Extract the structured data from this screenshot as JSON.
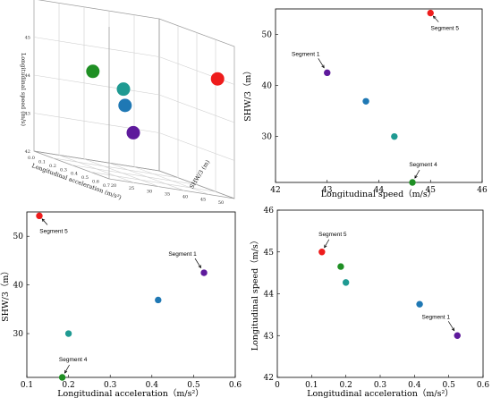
{
  "colors": {
    "segment5": "#ee1c1c",
    "segment1": "#5e1a9c",
    "green": "#1f8f24",
    "teal": "#1f9a92",
    "blue": "#1f78b4"
  },
  "chart_data": [
    {
      "type": "scatter",
      "panel": "3d-top-left",
      "xlabel": "Longitudinal acceleration (m/s²)",
      "ylabel": "SHW/3 (m)",
      "zlabel": "Longitudinal speed (m/s)",
      "x_ticks": [
        "0.7",
        "0.6",
        "0.5",
        "0.4",
        "0.3",
        "0.2",
        "0.1",
        "0.0"
      ],
      "y_ticks": [
        "20",
        "25",
        "30",
        "35",
        "40",
        "45",
        "50"
      ],
      "z_ticks": [
        "45",
        "44",
        "43",
        "42"
      ],
      "points": [
        {
          "acc": 0.13,
          "shw": 54.2,
          "speed": 45.0,
          "color": "#ee1c1c"
        },
        {
          "acc": 0.185,
          "shw": 21.0,
          "speed": 44.65,
          "color": "#1f8f24"
        },
        {
          "acc": 0.2,
          "shw": 30.0,
          "speed": 44.3,
          "color": "#1f9a92"
        },
        {
          "acc": 0.415,
          "shw": 36.9,
          "speed": 43.75,
          "color": "#1f78b4"
        },
        {
          "acc": 0.525,
          "shw": 42.5,
          "speed": 43.0,
          "color": "#5e1a9c"
        }
      ]
    },
    {
      "type": "scatter",
      "panel": "top-right",
      "xlabel": "Longitudinal speed（m/s）",
      "ylabel": "SHW/3（m）",
      "xlim": [
        42,
        46
      ],
      "ylim": [
        21,
        55
      ],
      "x_ticks": [
        42,
        43,
        44,
        45,
        46
      ],
      "y_ticks": [
        30,
        40,
        50
      ],
      "points": [
        {
          "x": 43.0,
          "y": 42.5,
          "color": "#5e1a9c"
        },
        {
          "x": 43.75,
          "y": 36.9,
          "color": "#1f78b4"
        },
        {
          "x": 44.3,
          "y": 30.0,
          "color": "#1f9a92"
        },
        {
          "x": 44.65,
          "y": 21.0,
          "color": "#1f8f24"
        },
        {
          "x": 45.0,
          "y": 54.2,
          "color": "#ee1c1c"
        }
      ],
      "annotations": [
        {
          "label": "Segment 1",
          "x": 43.0,
          "y": 42.5,
          "side": "upper-left"
        },
        {
          "label": "Segment 4",
          "x": 44.65,
          "y": 21.0,
          "side": "upper-right"
        },
        {
          "label": "Segment 5",
          "x": 45.0,
          "y": 54.2,
          "side": "lower-right"
        }
      ]
    },
    {
      "type": "scatter",
      "panel": "bottom-left",
      "xlabel": "Longitudinal acceleration（m/s²）",
      "ylabel": "SHW/3（m）",
      "xlim": [
        0.1,
        0.6
      ],
      "ylim": [
        21,
        55
      ],
      "x_ticks": [
        0.1,
        0.2,
        0.3,
        0.4,
        0.5,
        0.6
      ],
      "y_ticks": [
        30,
        40,
        50
      ],
      "points": [
        {
          "x": 0.13,
          "y": 54.2,
          "color": "#ee1c1c"
        },
        {
          "x": 0.185,
          "y": 21.0,
          "color": "#1f8f24"
        },
        {
          "x": 0.2,
          "y": 30.0,
          "color": "#1f9a92"
        },
        {
          "x": 0.415,
          "y": 36.9,
          "color": "#1f78b4"
        },
        {
          "x": 0.525,
          "y": 42.5,
          "color": "#5e1a9c"
        }
      ],
      "annotations": [
        {
          "label": "Segment 5",
          "x": 0.13,
          "y": 54.2,
          "side": "lower-right"
        },
        {
          "label": "Segment 1",
          "x": 0.525,
          "y": 42.5,
          "side": "upper-left"
        },
        {
          "label": "Segment 4",
          "x": 0.185,
          "y": 21.0,
          "side": "upper-right"
        }
      ]
    },
    {
      "type": "scatter",
      "panel": "bottom-right",
      "xlabel": "Longitudinal acceleration（m/s²）",
      "ylabel": "Longitudinal speed（m/s）",
      "xlim": [
        0,
        0.6
      ],
      "ylim": [
        42,
        46
      ],
      "x_ticks": [
        0,
        0.1,
        0.2,
        0.3,
        0.4,
        0.5,
        0.6
      ],
      "y_ticks": [
        42,
        43,
        44,
        45,
        46
      ],
      "points": [
        {
          "x": 0.13,
          "y": 45.0,
          "color": "#ee1c1c"
        },
        {
          "x": 0.185,
          "y": 44.65,
          "color": "#1f8f24"
        },
        {
          "x": 0.2,
          "y": 44.27,
          "color": "#1f9a92"
        },
        {
          "x": 0.415,
          "y": 43.75,
          "color": "#1f78b4"
        },
        {
          "x": 0.525,
          "y": 43.0,
          "color": "#5e1a9c"
        }
      ],
      "annotations": [
        {
          "label": "Segment 5",
          "x": 0.13,
          "y": 45.0,
          "side": "upper-right"
        },
        {
          "label": "Segment 1",
          "x": 0.525,
          "y": 43.0,
          "side": "upper-left"
        }
      ]
    }
  ]
}
